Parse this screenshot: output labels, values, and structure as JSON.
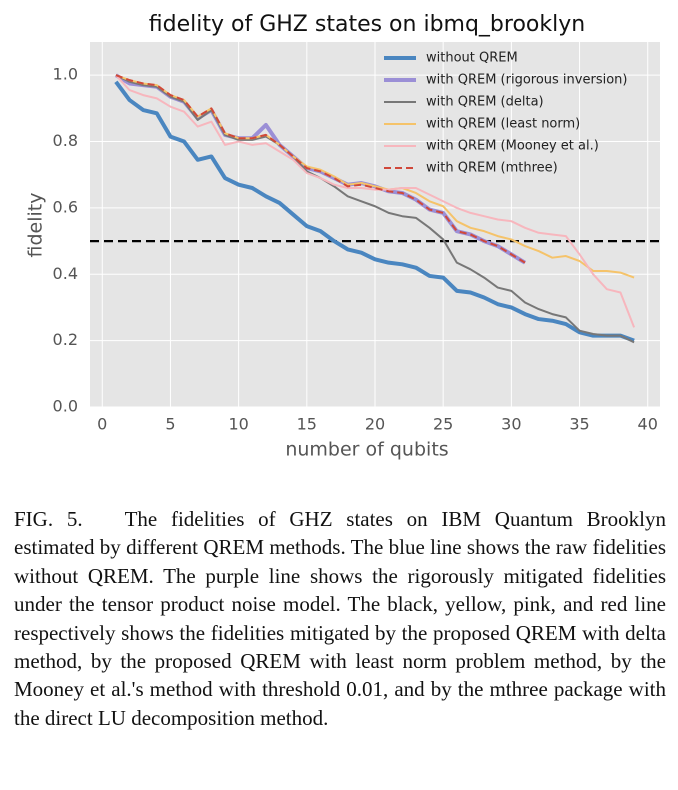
{
  "chart_data": {
    "type": "line",
    "title": "fidelity of GHZ states on ibmq_brooklyn",
    "xlabel": "number of qubits",
    "ylabel": "fidelity",
    "xlim": [
      -0.9,
      40.9
    ],
    "xticks": [
      0,
      5,
      10,
      15,
      20,
      25,
      30,
      35,
      40
    ],
    "ylim": [
      0,
      1.1
    ],
    "yticks": [
      {
        "value": 0,
        "label": "0.0"
      },
      0.2,
      0.4,
      0.6,
      0.8,
      {
        "value": 1,
        "label": "1.0"
      }
    ],
    "grid": true,
    "legend": "upper right",
    "hline": {
      "value": 0.5,
      "color": "#000000",
      "linestyle": "dashed"
    },
    "series": [
      {
        "name": "without QREM",
        "color": "#4a86c0",
        "linewidth": 4,
        "x": [
          1,
          2,
          3,
          4,
          5,
          6,
          7,
          8,
          9,
          10,
          11,
          12,
          13,
          14,
          15,
          16,
          17,
          18,
          19,
          20,
          21,
          22,
          23,
          24,
          25,
          26,
          27,
          28,
          29,
          30,
          31,
          32,
          33,
          34,
          35,
          36,
          37,
          38,
          39
        ],
        "values": [
          0.98,
          0.925,
          0.895,
          0.885,
          0.815,
          0.8,
          0.745,
          0.755,
          0.69,
          0.67,
          0.66,
          0.635,
          0.615,
          0.58,
          0.545,
          0.53,
          0.5,
          0.475,
          0.465,
          0.445,
          0.435,
          0.43,
          0.42,
          0.395,
          0.39,
          0.35,
          0.345,
          0.33,
          0.31,
          0.3,
          0.28,
          0.265,
          0.26,
          0.25,
          0.225,
          0.215,
          0.215,
          0.215,
          0.2
        ]
      },
      {
        "name": "with QREM (rigorous inversion)",
        "color": "#9b8fd6",
        "linewidth": 4,
        "x": [
          1,
          2,
          3,
          4,
          5,
          6,
          7,
          8,
          9,
          10,
          11,
          12,
          13,
          14,
          15,
          16,
          17,
          18,
          19,
          20,
          21,
          22,
          23,
          24,
          25,
          26,
          27,
          28,
          29,
          30,
          31
        ],
        "values": [
          1.0,
          0.975,
          0.97,
          0.965,
          0.935,
          0.92,
          0.87,
          0.895,
          0.82,
          0.81,
          0.81,
          0.85,
          0.79,
          0.755,
          0.72,
          0.71,
          0.69,
          0.67,
          0.675,
          0.665,
          0.65,
          0.645,
          0.625,
          0.595,
          0.585,
          0.53,
          0.52,
          0.5,
          0.485,
          0.46,
          0.435
        ]
      },
      {
        "name": "with QREM (delta)",
        "color": "#777777",
        "linewidth": 2,
        "x": [
          1,
          2,
          3,
          4,
          5,
          6,
          7,
          8,
          9,
          10,
          11,
          12,
          13,
          14,
          15,
          16,
          17,
          18,
          19,
          20,
          21,
          22,
          23,
          24,
          25,
          26,
          27,
          28,
          29,
          30,
          31,
          32,
          33,
          34,
          35,
          36,
          37,
          38,
          39
        ],
        "values": [
          1.0,
          0.98,
          0.97,
          0.965,
          0.935,
          0.92,
          0.865,
          0.895,
          0.82,
          0.805,
          0.805,
          0.815,
          0.79,
          0.755,
          0.71,
          0.69,
          0.665,
          0.635,
          0.62,
          0.605,
          0.585,
          0.575,
          0.57,
          0.54,
          0.505,
          0.435,
          0.415,
          0.39,
          0.36,
          0.35,
          0.315,
          0.295,
          0.28,
          0.27,
          0.23,
          0.22,
          0.215,
          0.215,
          0.195
        ]
      },
      {
        "name": "with QREM (least norm)",
        "color": "#f5c36a",
        "linewidth": 2,
        "x": [
          1,
          2,
          3,
          4,
          5,
          6,
          7,
          8,
          9,
          10,
          11,
          12,
          13,
          14,
          15,
          16,
          17,
          18,
          19,
          20,
          21,
          22,
          23,
          24,
          25,
          26,
          27,
          28,
          29,
          30,
          31,
          32,
          33,
          34,
          35,
          36,
          37,
          38,
          39
        ],
        "values": [
          1.0,
          0.985,
          0.975,
          0.97,
          0.94,
          0.925,
          0.875,
          0.9,
          0.825,
          0.81,
          0.81,
          0.82,
          0.79,
          0.755,
          0.725,
          0.715,
          0.695,
          0.67,
          0.675,
          0.665,
          0.655,
          0.66,
          0.645,
          0.62,
          0.605,
          0.56,
          0.54,
          0.53,
          0.515,
          0.505,
          0.485,
          0.47,
          0.45,
          0.455,
          0.44,
          0.41,
          0.41,
          0.405,
          0.39
        ]
      },
      {
        "name": "with QREM (Mooney et al.)",
        "color": "#f7b6bd",
        "linewidth": 2,
        "x": [
          1,
          2,
          3,
          4,
          5,
          6,
          7,
          8,
          9,
          10,
          11,
          12,
          13,
          14,
          15,
          16,
          17,
          18,
          19,
          20,
          21,
          22,
          23,
          24,
          25,
          26,
          27,
          28,
          29,
          30,
          31,
          32,
          33,
          34,
          35,
          36,
          37,
          38,
          39
        ],
        "values": [
          1.0,
          0.955,
          0.94,
          0.93,
          0.905,
          0.89,
          0.845,
          0.86,
          0.79,
          0.8,
          0.79,
          0.795,
          0.77,
          0.745,
          0.705,
          0.69,
          0.67,
          0.66,
          0.66,
          0.655,
          0.655,
          0.66,
          0.66,
          0.64,
          0.62,
          0.6,
          0.585,
          0.575,
          0.565,
          0.56,
          0.54,
          0.525,
          0.52,
          0.515,
          0.46,
          0.4,
          0.355,
          0.345,
          0.24
        ]
      },
      {
        "name": "with QREM (mthree)",
        "color": "#d0483a",
        "linewidth": 2,
        "linestyle": "dashed",
        "x": [
          1,
          2,
          3,
          4,
          5,
          6,
          7,
          8,
          9,
          10,
          11,
          12,
          13,
          14,
          15,
          16,
          17,
          18,
          19,
          20,
          21,
          22,
          23,
          24,
          25,
          26,
          27,
          28,
          29,
          30,
          31
        ],
        "values": [
          1.0,
          0.985,
          0.975,
          0.97,
          0.94,
          0.925,
          0.875,
          0.9,
          0.825,
          0.81,
          0.81,
          0.82,
          0.79,
          0.755,
          0.72,
          0.71,
          0.69,
          0.665,
          0.67,
          0.66,
          0.65,
          0.645,
          0.625,
          0.595,
          0.585,
          0.53,
          0.52,
          0.5,
          0.485,
          0.46,
          0.435
        ]
      }
    ]
  },
  "caption": {
    "label": "FIG. 5.",
    "text": "The fidelities of GHZ states on IBM Quantum Brooklyn estimated by different QREM methods. The blue line shows the raw fidelities without QREM. The purple line shows the rigorously mitigated fidelities under the tensor product noise model. The black, yellow, pink, and red line respectively shows the fidelities mitigated by the proposed QREM with delta method, by the proposed QREM with least norm problem method, by the Mooney et al.'s method with threshold 0.01, and by the mthree package with the direct LU decomposition method."
  }
}
